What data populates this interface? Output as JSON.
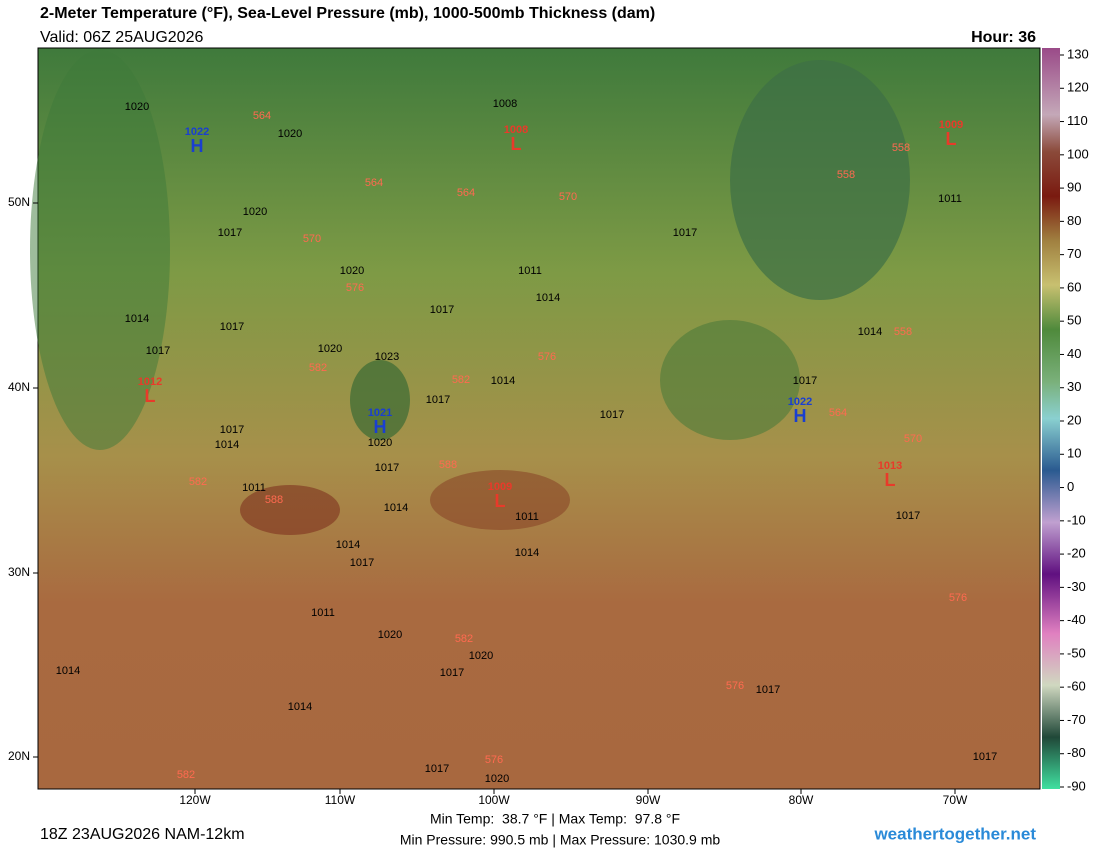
{
  "header": {
    "title": "2-Meter Temperature (°F), Sea-Level Pressure (mb), 1000-500mb Thickness (dam)",
    "valid": "Valid: 06Z 25AUG2026",
    "hour": "Hour: 36"
  },
  "map": {
    "latitude_labels": [
      "50N",
      "40N",
      "30N",
      "20N"
    ],
    "longitude_labels": [
      "120W",
      "110W",
      "100W",
      "90W",
      "80W",
      "70W"
    ],
    "pressure_centers": [
      {
        "letter": "H",
        "value": 1022
      },
      {
        "letter": "L",
        "value": 1008
      },
      {
        "letter": "L",
        "value": 1009
      },
      {
        "letter": "L",
        "value": 1012
      },
      {
        "letter": "H",
        "value": 1021
      },
      {
        "letter": "H",
        "value": 1022
      },
      {
        "letter": "L",
        "value": 1013
      },
      {
        "letter": "L",
        "value": 1009
      }
    ],
    "isobar_labels": [
      1020,
      1020,
      1020,
      1017,
      1020,
      1014,
      1017,
      1017,
      1020,
      1023,
      1017,
      1011,
      1014,
      1008,
      1017,
      1014,
      1017,
      1014,
      1017,
      1020,
      1017,
      1014,
      1017,
      1017,
      1014,
      1011,
      1014,
      1014,
      1017,
      1011,
      1020,
      1017,
      1020,
      1014,
      1014,
      1017,
      1017,
      1011,
      1017,
      1020,
      1017,
      1011
    ],
    "thickness_labels": [
      564,
      564,
      564,
      570,
      558,
      558,
      570,
      576,
      576,
      582,
      582,
      588,
      588,
      582,
      570,
      564,
      558,
      582,
      576,
      582,
      576,
      576
    ]
  },
  "colorbar": {
    "ticks": [
      130,
      120,
      110,
      100,
      90,
      80,
      70,
      60,
      50,
      40,
      30,
      20,
      10,
      0,
      -10,
      -20,
      -30,
      -40,
      -50,
      -60,
      -70,
      -80,
      -90
    ]
  },
  "footer": {
    "run": "18Z 23AUG2026 NAM-12km",
    "temperature": "Min Temp:  38.7 °F | Max Temp:  97.8 °F",
    "pressure": "Min Pressure: 990.5 mb | Max Pressure: 1030.9 mb",
    "site": "weathertogether.net"
  }
}
